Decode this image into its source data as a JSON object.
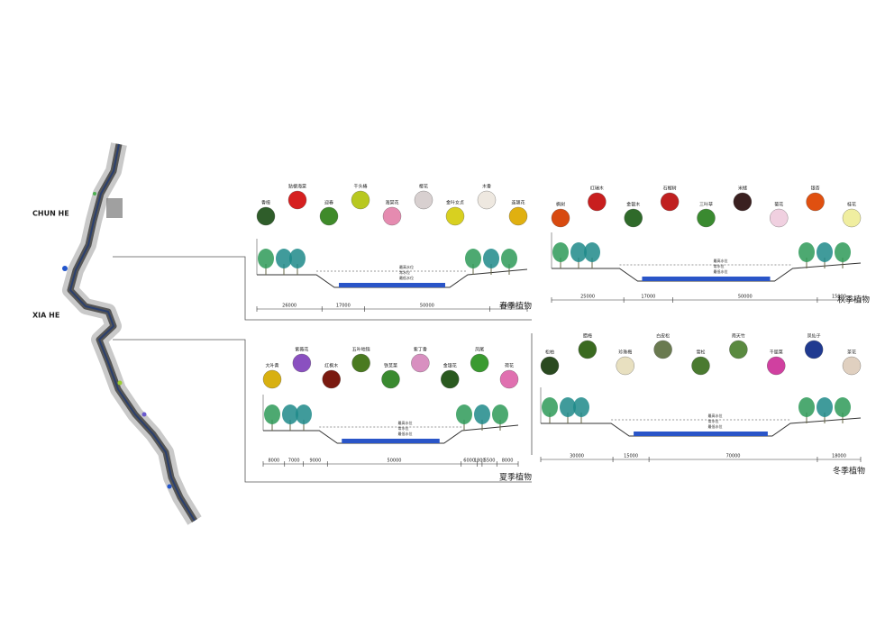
{
  "map": {
    "labels": [
      "CHUN HE",
      "XIA HE"
    ]
  },
  "sections": [
    {
      "title": "春季植物",
      "plants": [
        "香樟",
        "贴梗海棠",
        "迎春",
        "千头椿",
        "海棠花",
        "樱花",
        "金叶女贞",
        "木香",
        "连翘花"
      ],
      "dimensions": [
        26000,
        17000,
        50000,
        15000
      ],
      "water_labels": [
        "最高水位",
        "常水位",
        "最低水位"
      ]
    },
    {
      "title": "秋季植物",
      "plants": [
        "枫树",
        "红瑞木",
        "金银木",
        "石榴树",
        "三叶草",
        "米槠",
        "菊花",
        "银杏",
        "桂花"
      ],
      "dimensions": [
        25000,
        17000,
        50000,
        15000
      ],
      "water_labels": [
        "最高水位",
        "常水位",
        "最低水位"
      ]
    },
    {
      "title": "夏季植物",
      "plants": [
        "大叶黄",
        "紫薇花",
        "红枫木",
        "五叶地锦",
        "铁苋菜",
        "紫丁香",
        "金银花",
        "凤尾",
        "荷花"
      ],
      "dimensions": [
        8000,
        7000,
        9000,
        50000,
        6000,
        1800,
        5500,
        8000
      ],
      "water_labels": [
        "最高水位",
        "常水位",
        "最低水位"
      ]
    },
    {
      "title": "冬季植物",
      "plants": [
        "松柏",
        "腊梅",
        "珍珠梅",
        "白皮松",
        "雪松",
        "南天竹",
        "千屈菜",
        "凤仙子",
        "茶花"
      ],
      "dimensions": [
        30000,
        15000,
        70000,
        18000
      ],
      "water_labels": [
        "最高水位",
        "常水位",
        "最低水位"
      ]
    }
  ]
}
